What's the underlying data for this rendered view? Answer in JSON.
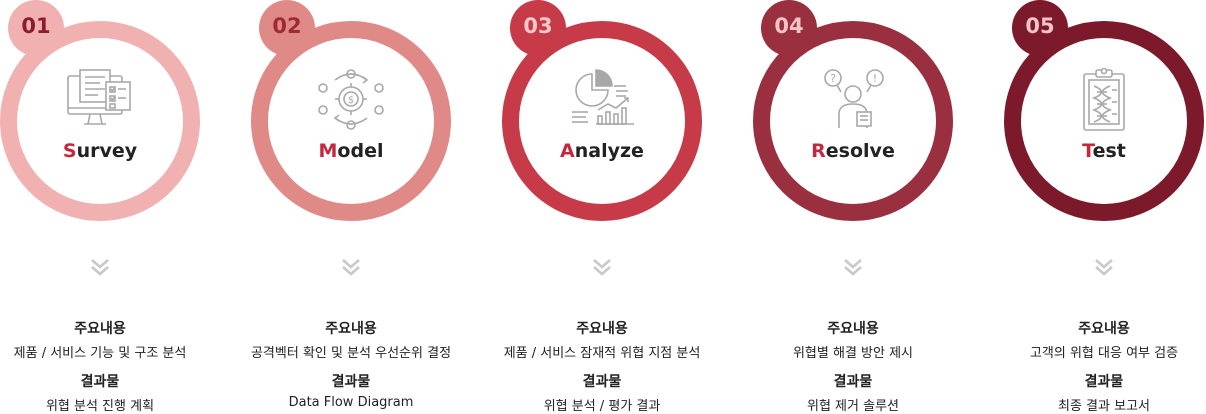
{
  "steps": [
    {
      "number": "01",
      "title_first": "S",
      "title_rest": "urvey",
      "icon": "survey-monitor-checklist-icon",
      "ring_color": "#f2b1b1",
      "badge_bg": "#f2b1b1",
      "badge_text_color": "#8b1e2e",
      "content_heading": "주요내용",
      "content_text": "제품 / 서비스 기능 및 구조 분석",
      "result_heading": "결과물",
      "result_text": "위협 분석 진행 계획"
    },
    {
      "number": "02",
      "title_first": "M",
      "title_rest": "odel",
      "icon": "model-gear-cycle-icon",
      "ring_color": "#e08a88",
      "badge_bg": "#e08a88",
      "badge_text_color": "#9e2a35",
      "content_heading": "주요내용",
      "content_text": "공격벡터 확인 및 분석 우선순위 결정",
      "result_heading": "결과물",
      "result_text": "Data Flow Diagram"
    },
    {
      "number": "03",
      "title_first": "A",
      "title_rest": "nalyze",
      "icon": "analyze-chart-icon",
      "ring_color": "#c73a48",
      "badge_bg": "#c73a48",
      "badge_text_color": "#f6c9cd",
      "content_heading": "주요내용",
      "content_text": "제품 / 서비스 잠재적 위협 지점 분석",
      "result_heading": "결과물",
      "result_text": "위협 분석 / 평가 결과"
    },
    {
      "number": "04",
      "title_first": "R",
      "title_rest": "esolve",
      "icon": "resolve-person-question-icon",
      "ring_color": "#9a2f3f",
      "badge_bg": "#9a2f3f",
      "badge_text_color": "#f2c4c8",
      "content_heading": "주요내용",
      "content_text": "위협별 해결 방안 제시",
      "result_heading": "결과물",
      "result_text": "위협 제거 솔루션"
    },
    {
      "number": "05",
      "title_first": "T",
      "title_rest": "est",
      "icon": "test-clipboard-dna-icon",
      "ring_color": "#7c1a2c",
      "badge_bg": "#7c1a2c",
      "badge_text_color": "#f2c4c8",
      "content_heading": "주요내용",
      "content_text": "고객의 위협 대응 여부 검증",
      "result_heading": "결과물",
      "result_text": "최종 결과 보고서"
    }
  ],
  "chevron_color": "#c9c9c9",
  "icon_color": "#a8a8a8",
  "accent_color": "#c5283d"
}
